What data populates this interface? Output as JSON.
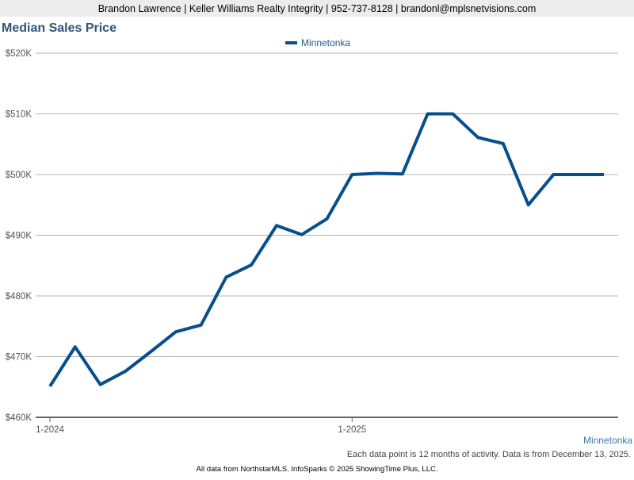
{
  "header": "Brandon Lawrence | Keller Williams Realty Integrity | 952-737-8128 | brandonl@mplsnetvisions.com",
  "chart_data": {
    "type": "line",
    "title": "Median Sales Price",
    "categories": [
      "1-2024",
      null,
      null,
      null,
      null,
      null,
      null,
      null,
      null,
      null,
      null,
      null,
      "1-2025",
      null,
      null,
      null,
      null,
      null,
      null,
      null,
      null,
      null,
      null
    ],
    "series": [
      {
        "name": "Minnetonka",
        "color": "#064f8c",
        "values": [
          465100,
          471600,
          465400,
          467600,
          470800,
          474100,
          475200,
          483100,
          485100,
          491600,
          490100,
          492700,
          500000,
          500200,
          500100,
          510000,
          510000,
          506100,
          505100,
          495000,
          500000,
          500000,
          500000
        ]
      }
    ],
    "ylim": [
      460000,
      520000
    ],
    "yticks": [
      {
        "value": 460000,
        "label": "$460K"
      },
      {
        "value": 470000,
        "label": "$470K"
      },
      {
        "value": 480000,
        "label": "$480K"
      },
      {
        "value": 490000,
        "label": "$490K"
      },
      {
        "value": 500000,
        "label": "$500K"
      },
      {
        "value": 510000,
        "label": "$510K"
      },
      {
        "value": 520000,
        "label": "$520K"
      }
    ],
    "grid": true,
    "legend": "top",
    "area_label": "Minnetonka",
    "note": "Each data point is 12 months of activity. Data is from December 13, 2025."
  },
  "footer": "All data from NorthstarMLS. InfoSparks © 2025 ShowingTime Plus, LLC."
}
